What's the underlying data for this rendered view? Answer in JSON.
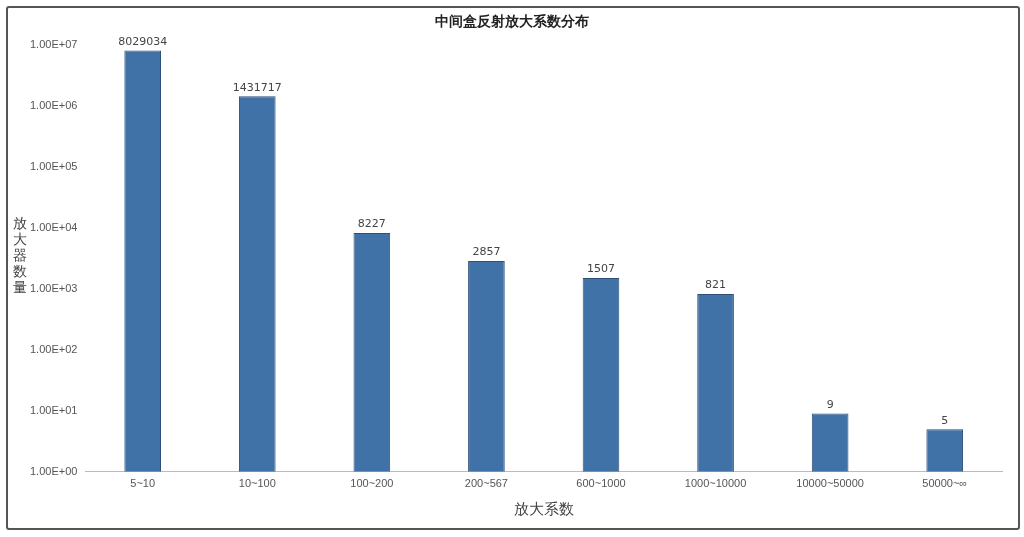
{
  "chart_data": {
    "type": "bar",
    "title": "中间盒反射放大系数分布",
    "xlabel": "放大系数",
    "ylabel": "放大器数量",
    "categories": [
      "5~10",
      "10~100",
      "100~200",
      "200~567",
      "600~1000",
      "1000~10000",
      "10000~50000",
      "50000~∞"
    ],
    "values": [
      8029034,
      1431717,
      8227,
      2857,
      1507,
      821,
      9,
      5
    ],
    "color": "#4072a8",
    "log": true,
    "ylim": [
      1,
      10000000
    ],
    "yticks": [
      {
        "value": 1,
        "label": "1.00E+00"
      },
      {
        "value": 10,
        "label": "1.00E+01"
      },
      {
        "value": 100,
        "label": "1.00E+02"
      },
      {
        "value": 1000,
        "label": "1.00E+03"
      },
      {
        "value": 10000,
        "label": "1.00E+04"
      },
      {
        "value": 100000,
        "label": "1.00E+05"
      },
      {
        "value": 1000000,
        "label": "1.00E+06"
      },
      {
        "value": 10000000,
        "label": "1.00E+07"
      }
    ],
    "data_labels": true,
    "grid": false,
    "legend": false
  }
}
